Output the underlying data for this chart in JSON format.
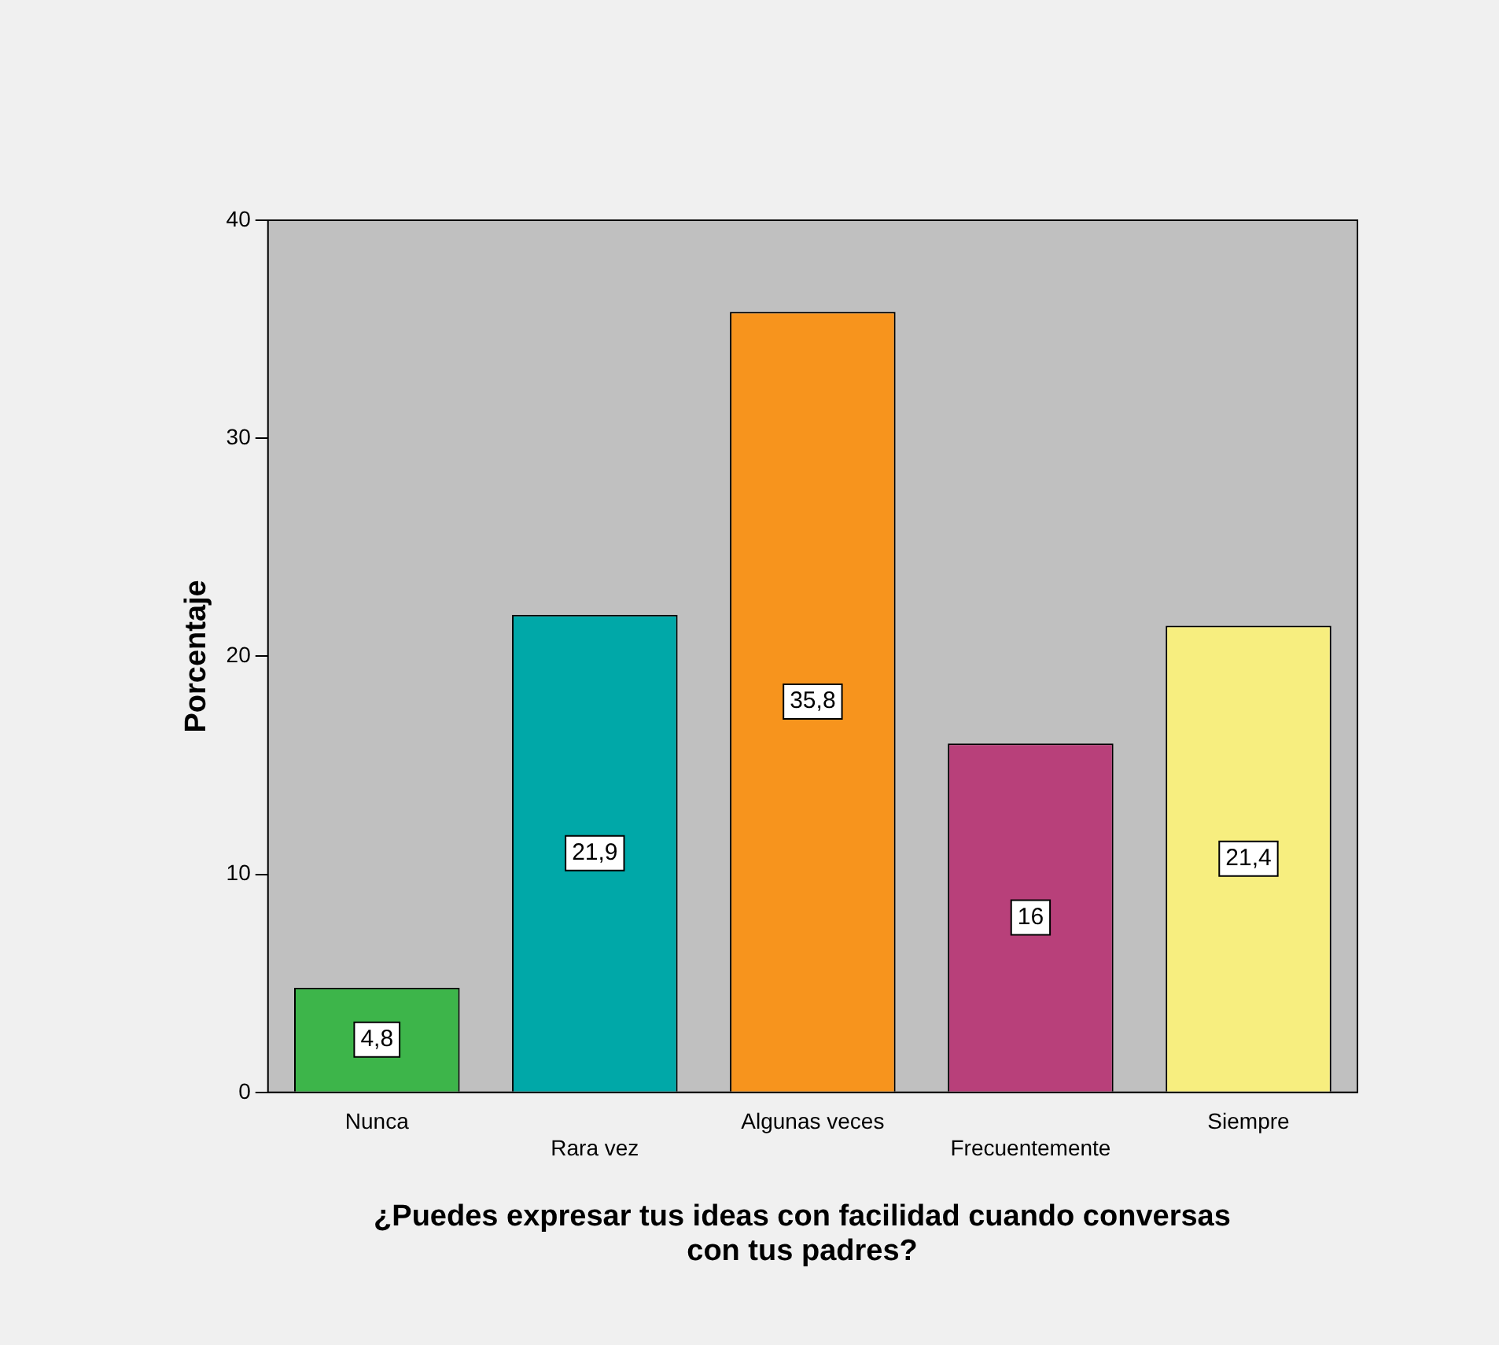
{
  "chart_data": {
    "type": "bar",
    "xlabel": "¿Puedes expresar tus ideas con facilidad cuando conversas con tus padres?",
    "ylabel": "Porcentaje",
    "categories": [
      "Nunca",
      "Rara vez",
      "Algunas veces",
      "Frecuentemente",
      "Siempre"
    ],
    "values": [
      4.8,
      21.9,
      35.8,
      16,
      21.4
    ],
    "value_labels": [
      "4,8",
      "21,9",
      "35,8",
      "16",
      "21,4"
    ],
    "colors": [
      "#3db54a",
      "#00a8a8",
      "#f7941d",
      "#b8407a",
      "#f7ee7f"
    ],
    "ylim": [
      0,
      40
    ],
    "yticks": [
      0,
      10,
      20,
      30,
      40
    ],
    "grid": false,
    "legend": false
  }
}
